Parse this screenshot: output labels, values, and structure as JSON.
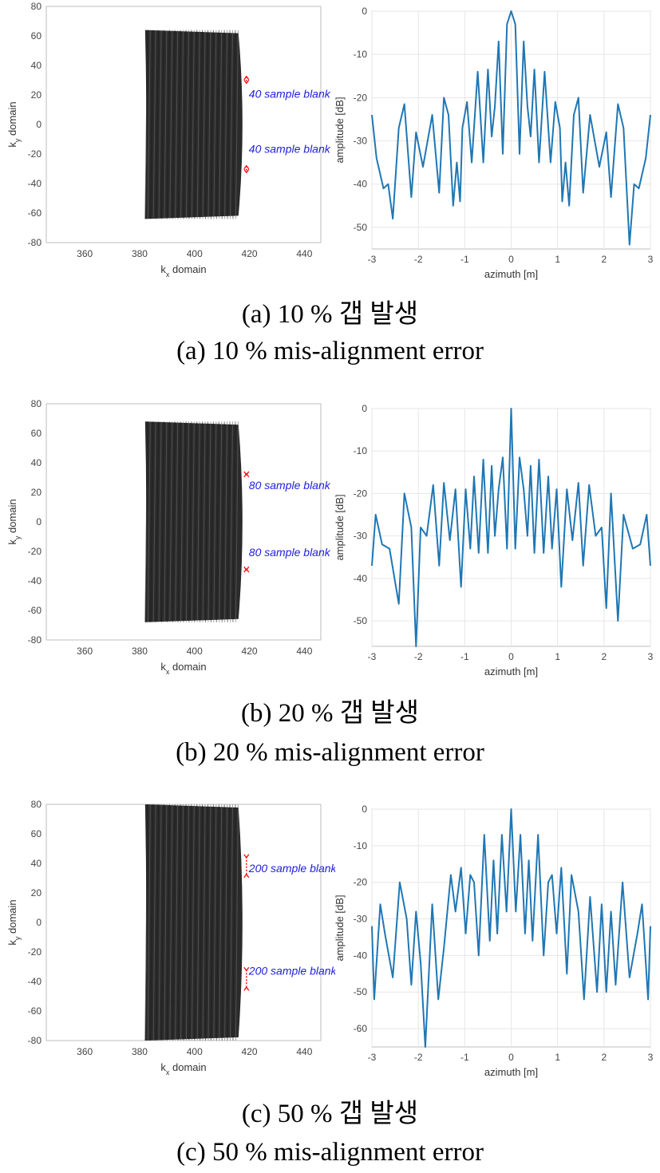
{
  "colors": {
    "line": "#1f77b4",
    "arrow": "#ff0000",
    "blank_label": "#2020e0",
    "axes": "#404040",
    "grid": "#e6e6e6"
  },
  "panels": [
    {
      "caption_ko": "(a) 10 % 갭 발생",
      "caption_en": "(a) 10 % mis-alignment error",
      "kspace": {
        "ylabel": "k",
        "ylabel_sub": "y",
        "ylabel_rest": " domain",
        "xlabel": "k",
        "xlabel_sub": "x",
        "xlabel_rest": " domain",
        "yticks": [
          "-80",
          "-60",
          "-40",
          "-20",
          "0",
          "20",
          "40",
          "60",
          "80"
        ],
        "xticks": [
          "360",
          "380",
          "400",
          "420",
          "440"
        ],
        "blank_labels": [
          "40 sample blank",
          "40 sample blank"
        ]
      },
      "psf": {
        "ylabel": "amplitude [dB]",
        "xlabel": "azimuth [m]",
        "yticks": [
          "0",
          "-10",
          "-20",
          "-30",
          "-40",
          "-50"
        ],
        "xticks": [
          "-3",
          "-2",
          "-1",
          "0",
          "1",
          "2",
          "3"
        ]
      }
    },
    {
      "caption_ko": "(b) 20 % 갭 발생",
      "caption_en": "(b) 20 % mis-alignment error",
      "kspace": {
        "ylabel": "k",
        "ylabel_sub": "y",
        "ylabel_rest": " domain",
        "xlabel": "k",
        "xlabel_sub": "x",
        "xlabel_rest": " domain",
        "yticks": [
          "-80",
          "-60",
          "-40",
          "-20",
          "0",
          "20",
          "40",
          "60",
          "80"
        ],
        "xticks": [
          "360",
          "380",
          "400",
          "420",
          "440"
        ],
        "blank_labels": [
          "80 sample blank",
          "80 sample blank"
        ]
      },
      "psf": {
        "ylabel": "amplitude [dB]",
        "xlabel": "azimuth [m]",
        "yticks": [
          "0",
          "-10",
          "-20",
          "-30",
          "-40",
          "-50"
        ],
        "xticks": [
          "-3",
          "-2",
          "-1",
          "0",
          "1",
          "2",
          "3"
        ]
      }
    },
    {
      "caption_ko": "(c) 50 % 갭 발생",
      "caption_en": "(c) 50 % mis-alignment error",
      "kspace": {
        "ylabel": "k",
        "ylabel_sub": "y",
        "ylabel_rest": " domain",
        "xlabel": "k",
        "xlabel_sub": "x",
        "xlabel_rest": " domain",
        "yticks": [
          "-80",
          "-60",
          "-40",
          "-20",
          "0",
          "20",
          "40",
          "60",
          "80"
        ],
        "xticks": [
          "360",
          "380",
          "400",
          "420",
          "440"
        ],
        "blank_labels": [
          "200 sample blank",
          "200 sample blank"
        ]
      },
      "psf": {
        "ylabel": "amplitude [dB]",
        "xlabel": "azimuth [m]",
        "yticks": [
          "0",
          "-10",
          "-20",
          "-30",
          "-40",
          "-50",
          "-60"
        ],
        "xticks": [
          "-3",
          "-2",
          "-1",
          "0",
          "1",
          "2",
          "3"
        ]
      }
    }
  ],
  "chart_data": [
    {
      "type": "heatmap",
      "panel": "a-kspace",
      "xlabel": "kx domain",
      "ylabel": "ky domain",
      "xlim": [
        346,
        446
      ],
      "ylim": [
        80,
        -80
      ],
      "support_x": [
        382,
        416
      ],
      "support_y": [
        -64,
        64
      ],
      "blank_bands_ky": [
        [
          -29,
          -25
        ],
        [
          25,
          29
        ]
      ],
      "annotations": [
        "40 sample blank",
        "40 sample blank"
      ]
    },
    {
      "type": "line",
      "panel": "a-psf",
      "xlabel": "azimuth [m]",
      "ylabel": "amplitude [dB]",
      "xlim": [
        -3,
        3
      ],
      "ylim": [
        -55,
        0
      ],
      "x": [
        -3.0,
        -2.9,
        -2.75,
        -2.65,
        -2.55,
        -2.42,
        -2.3,
        -2.15,
        -2.05,
        -1.9,
        -1.7,
        -1.55,
        -1.45,
        -1.35,
        -1.25,
        -1.17,
        -1.1,
        -1.05,
        -0.95,
        -0.85,
        -0.72,
        -0.6,
        -0.5,
        -0.42,
        -0.35,
        -0.27,
        -0.18,
        -0.09,
        0.0,
        0.09,
        0.18,
        0.27,
        0.35,
        0.42,
        0.5,
        0.6,
        0.72,
        0.85,
        0.95,
        1.05,
        1.1,
        1.17,
        1.25,
        1.35,
        1.45,
        1.55,
        1.7,
        1.9,
        2.05,
        2.15,
        2.3,
        2.42,
        2.55,
        2.65,
        2.75,
        2.9,
        3.0
      ],
      "y": [
        -24,
        -34,
        -41,
        -40,
        -48,
        -27,
        -21.5,
        -43,
        -28,
        -36,
        -24,
        -42,
        -20,
        -24,
        -45,
        -35,
        -44,
        -27,
        -21,
        -35,
        -14,
        -35,
        -13.5,
        -29,
        -22,
        -7,
        -33,
        -3,
        0,
        -3,
        -33,
        -7,
        -22,
        -29,
        -13.5,
        -35,
        -14,
        -35,
        -21,
        -27,
        -44,
        -35,
        -45,
        -24,
        -20,
        -42,
        -24,
        -36,
        -28,
        -43,
        -21.5,
        -27,
        -54,
        -40,
        -41,
        -34,
        -24
      ]
    },
    {
      "type": "heatmap",
      "panel": "b-kspace",
      "xlabel": "kx domain",
      "ylabel": "ky domain",
      "xlim": [
        346,
        446
      ],
      "ylim": [
        80,
        -80
      ],
      "support_x": [
        382,
        416
      ],
      "support_y": [
        -68,
        68
      ],
      "blank_bands_ky": [
        [
          -33,
          -25
        ],
        [
          25,
          33
        ]
      ],
      "annotations": [
        "80 sample blank",
        "80 sample blank"
      ]
    },
    {
      "type": "line",
      "panel": "b-psf",
      "xlabel": "azimuth [m]",
      "ylabel": "amplitude [dB]",
      "xlim": [
        -3,
        3
      ],
      "ylim": [
        -56,
        0
      ],
      "x": [
        -3.0,
        -2.92,
        -2.78,
        -2.62,
        -2.42,
        -2.3,
        -2.15,
        -2.05,
        -1.95,
        -1.82,
        -1.68,
        -1.55,
        -1.45,
        -1.32,
        -1.2,
        -1.08,
        -0.98,
        -0.88,
        -0.8,
        -0.7,
        -0.6,
        -0.5,
        -0.42,
        -0.35,
        -0.27,
        -0.18,
        -0.09,
        0.0,
        0.09,
        0.18,
        0.27,
        0.35,
        0.42,
        0.5,
        0.6,
        0.7,
        0.8,
        0.88,
        0.98,
        1.08,
        1.2,
        1.32,
        1.45,
        1.55,
        1.68,
        1.82,
        1.95,
        2.05,
        2.15,
        2.3,
        2.42,
        2.62,
        2.78,
        2.92,
        3.0
      ],
      "y": [
        -37,
        -25,
        -32,
        -33,
        -46,
        -20,
        -28,
        -56,
        -28,
        -30,
        -18,
        -37,
        -17.5,
        -31,
        -19,
        -42,
        -19,
        -33,
        -16,
        -34,
        -12,
        -34,
        -13.5,
        -30,
        -19,
        -11.5,
        -33,
        0,
        -33,
        -11.5,
        -19,
        -30,
        -13.5,
        -34,
        -12,
        -34,
        -16,
        -33,
        -19,
        -42,
        -19,
        -31,
        -17.5,
        -37,
        -18,
        -30,
        -28,
        -47,
        -20,
        -50,
        -25,
        -33,
        -32,
        -25,
        -37
      ]
    },
    {
      "type": "heatmap",
      "panel": "c-kspace",
      "xlabel": "kx domain",
      "ylabel": "ky domain",
      "xlim": [
        346,
        446
      ],
      "ylim": [
        80,
        -80
      ],
      "support_x": [
        382,
        416
      ],
      "support_y": [
        -80,
        80
      ],
      "blank_bands_ky": [
        [
          -45,
          -25
        ],
        [
          25,
          45
        ]
      ],
      "annotations": [
        "200 sample blank",
        "200 sample blank"
      ]
    },
    {
      "type": "line",
      "panel": "c-psf",
      "xlabel": "azimuth [m]",
      "ylabel": "amplitude [dB]",
      "xlim": [
        -3,
        3
      ],
      "ylim": [
        -65,
        0
      ],
      "x": [
        -3.0,
        -2.95,
        -2.82,
        -2.72,
        -2.55,
        -2.4,
        -2.25,
        -2.15,
        -2.05,
        -1.95,
        -1.85,
        -1.7,
        -1.57,
        -1.45,
        -1.3,
        -1.2,
        -1.08,
        -0.98,
        -0.88,
        -0.8,
        -0.7,
        -0.58,
        -0.46,
        -0.38,
        -0.3,
        -0.2,
        -0.1,
        0.0,
        0.1,
        0.2,
        0.3,
        0.38,
        0.46,
        0.58,
        0.7,
        0.8,
        0.88,
        0.98,
        1.08,
        1.2,
        1.3,
        1.45,
        1.57,
        1.7,
        1.85,
        1.95,
        2.05,
        2.15,
        2.25,
        2.4,
        2.55,
        2.72,
        2.82,
        2.95,
        3.0
      ],
      "y": [
        -32,
        -52,
        -26,
        -34,
        -46,
        -20,
        -30,
        -48,
        -28,
        -42,
        -65,
        -26,
        -52,
        -38,
        -18,
        -28,
        -16,
        -34,
        -18,
        -20,
        -40,
        -7,
        -36,
        -14,
        -34,
        -7,
        -28,
        0,
        -28,
        -7,
        -34,
        -14,
        -36,
        -7,
        -40,
        -20,
        -18,
        -34,
        -16,
        -45,
        -18,
        -28,
        -52,
        -24,
        -50,
        -26,
        -50,
        -28,
        -48,
        -20,
        -46,
        -34,
        -26,
        -52,
        -32
      ]
    }
  ]
}
